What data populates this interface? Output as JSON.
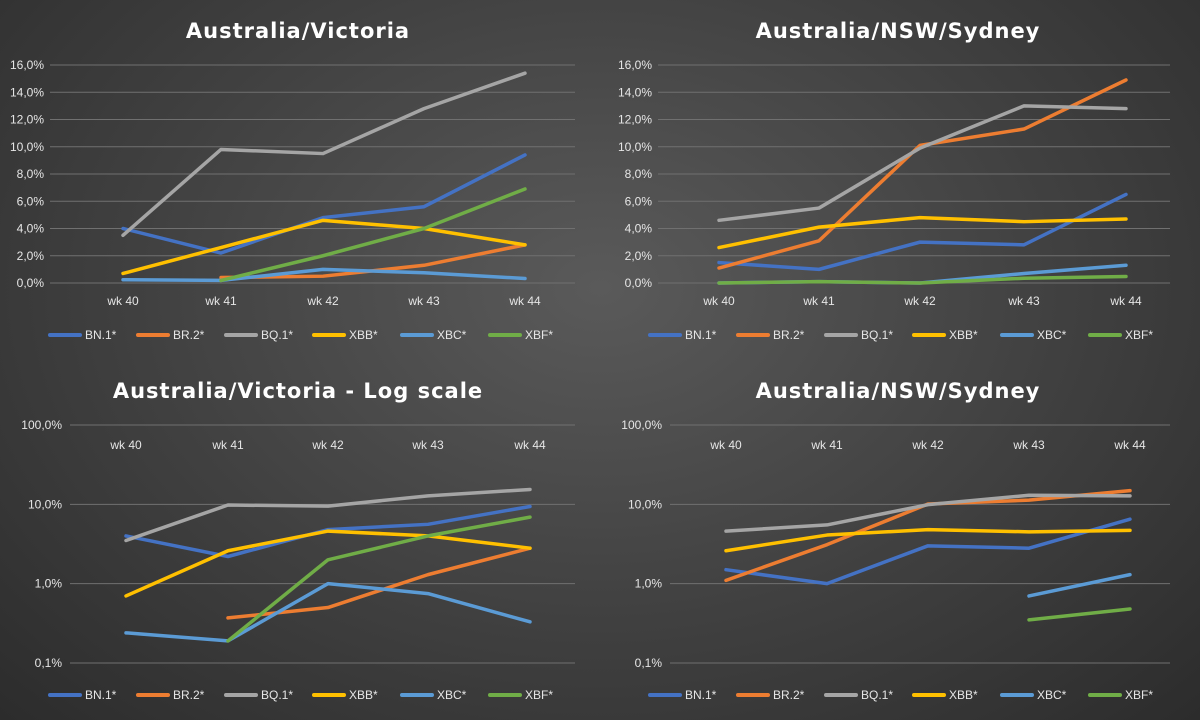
{
  "colors": {
    "BN.1*": "#4472C4",
    "BR.2*": "#ED7D31",
    "BQ.1*": "#A5A5A5",
    "XBB*": "#FFC000",
    "XBC*": "#5B9BD5",
    "XBF*": "#70AD47"
  },
  "chart_data": [
    {
      "type": "line",
      "title": "Australia/Victoria",
      "scale": "linear",
      "ylim": [
        0,
        16
      ],
      "ytick_values": [
        0,
        2,
        4,
        6,
        8,
        10,
        12,
        14,
        16
      ],
      "ytick_labels": [
        "0,0%",
        "2,0%",
        "4,0%",
        "6,0%",
        "8,0%",
        "10,0%",
        "12,0%",
        "14,0%",
        "16,0%"
      ],
      "categories": [
        "wk 40",
        "wk 41",
        "wk 42",
        "wk 43",
        "wk 44"
      ],
      "legend_position": "bottom",
      "series": [
        {
          "name": "BN.1*",
          "values": [
            4.0,
            2.2,
            4.8,
            5.6,
            9.4
          ]
        },
        {
          "name": "BR.2*",
          "values": [
            null,
            0.4,
            0.5,
            1.3,
            2.8
          ]
        },
        {
          "name": "BQ.1*",
          "values": [
            3.5,
            9.8,
            9.5,
            12.8,
            15.4
          ]
        },
        {
          "name": "XBB*",
          "values": [
            0.7,
            2.6,
            4.6,
            4.0,
            2.8
          ]
        },
        {
          "name": "XBC*",
          "values": [
            0.24,
            0.19,
            1.0,
            0.75,
            0.33
          ]
        },
        {
          "name": "XBF*",
          "values": [
            null,
            0.19,
            2.0,
            4.0,
            6.9
          ]
        }
      ]
    },
    {
      "type": "line",
      "title": "Australia/NSW/Sydney",
      "scale": "linear",
      "ylim": [
        0,
        16
      ],
      "ytick_values": [
        0,
        2,
        4,
        6,
        8,
        10,
        12,
        14,
        16
      ],
      "ytick_labels": [
        "0,0%",
        "2,0%",
        "4,0%",
        "6,0%",
        "8,0%",
        "10,0%",
        "12,0%",
        "14,0%",
        "16,0%"
      ],
      "categories": [
        "wk 40",
        "wk 41",
        "wk 42",
        "wk 43",
        "wk 44"
      ],
      "legend_position": "bottom",
      "series": [
        {
          "name": "BN.1*",
          "values": [
            1.5,
            1.0,
            3.0,
            2.8,
            6.5
          ]
        },
        {
          "name": "BR.2*",
          "values": [
            1.1,
            3.1,
            10.1,
            11.3,
            14.9
          ]
        },
        {
          "name": "BQ.1*",
          "values": [
            4.6,
            5.5,
            9.9,
            13.0,
            12.8
          ]
        },
        {
          "name": "XBB*",
          "values": [
            2.6,
            4.1,
            4.8,
            4.5,
            4.7
          ]
        },
        {
          "name": "XBC*",
          "values": [
            0.0,
            0.1,
            0.0,
            0.7,
            1.3
          ]
        },
        {
          "name": "XBF*",
          "values": [
            0.0,
            0.1,
            0.0,
            0.35,
            0.48
          ]
        }
      ]
    },
    {
      "type": "line",
      "title": "Australia/Victoria - Log scale",
      "scale": "log",
      "ylim": [
        0.1,
        100
      ],
      "ytick_values": [
        100,
        10,
        1,
        0.1
      ],
      "ytick_labels": [
        "100,0%",
        "10,0%",
        "1,0%",
        "0,1%"
      ],
      "categories": [
        "wk 40",
        "wk 41",
        "wk 42",
        "wk 43",
        "wk 44"
      ],
      "legend_position": "bottom",
      "series": [
        {
          "name": "BN.1*",
          "values": [
            4.0,
            2.2,
            4.8,
            5.6,
            9.4
          ]
        },
        {
          "name": "BR.2*",
          "values": [
            null,
            0.37,
            0.5,
            1.3,
            2.8
          ]
        },
        {
          "name": "BQ.1*",
          "values": [
            3.5,
            9.8,
            9.5,
            12.8,
            15.4
          ]
        },
        {
          "name": "XBB*",
          "values": [
            0.7,
            2.6,
            4.6,
            4.0,
            2.8
          ]
        },
        {
          "name": "XBC*",
          "values": [
            0.24,
            0.19,
            1.0,
            0.75,
            0.33
          ]
        },
        {
          "name": "XBF*",
          "values": [
            null,
            0.19,
            2.0,
            4.0,
            6.9
          ]
        }
      ]
    },
    {
      "type": "line",
      "title": "Australia/NSW/Sydney",
      "scale": "log",
      "ylim": [
        0.1,
        100
      ],
      "ytick_values": [
        100,
        10,
        1,
        0.1
      ],
      "ytick_labels": [
        "100,0%",
        "10,0%",
        "1,0%",
        "0,1%"
      ],
      "categories": [
        "wk 40",
        "wk 41",
        "wk 42",
        "wk 43",
        "wk 44"
      ],
      "legend_position": "bottom",
      "series": [
        {
          "name": "BN.1*",
          "values": [
            1.5,
            1.0,
            3.0,
            2.8,
            6.5
          ]
        },
        {
          "name": "BR.2*",
          "values": [
            1.1,
            3.1,
            10.1,
            11.3,
            14.9
          ]
        },
        {
          "name": "BQ.1*",
          "values": [
            4.6,
            5.5,
            9.9,
            13.0,
            12.8
          ]
        },
        {
          "name": "XBB*",
          "values": [
            2.6,
            4.1,
            4.8,
            4.5,
            4.7
          ]
        },
        {
          "name": "XBC*",
          "values": [
            null,
            null,
            null,
            0.7,
            1.3
          ]
        },
        {
          "name": "XBF*",
          "values": [
            null,
            null,
            null,
            0.35,
            0.48
          ]
        }
      ]
    }
  ]
}
